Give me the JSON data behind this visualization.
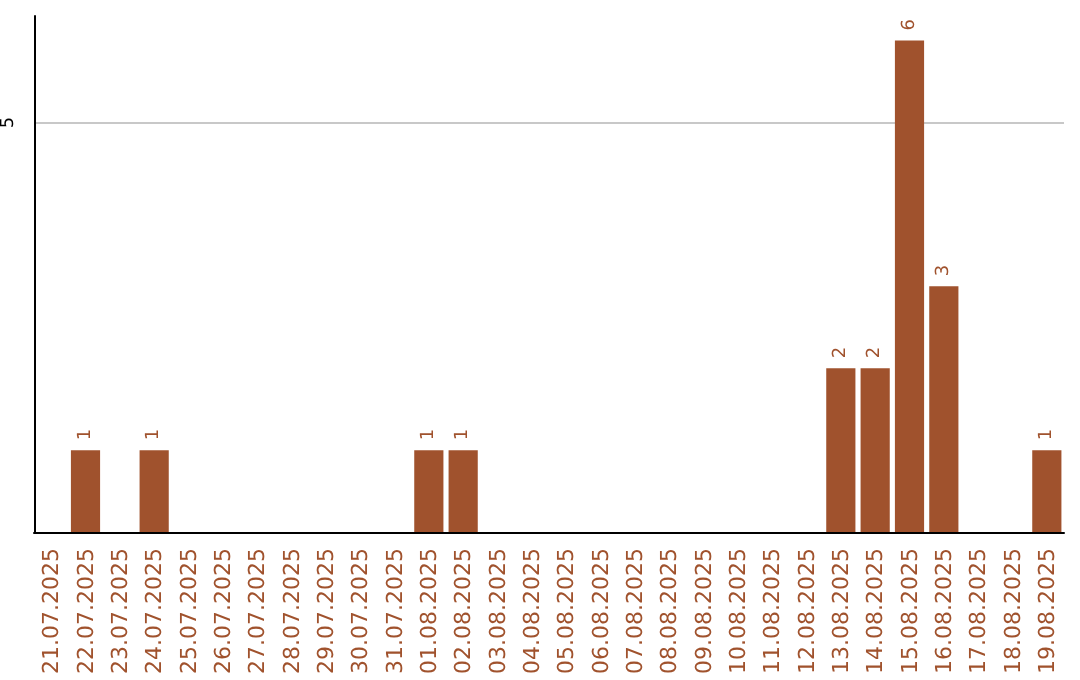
{
  "chart_data": {
    "type": "bar",
    "categories": [
      "21.07.2025",
      "22.07.2025",
      "23.07.2025",
      "24.07.2025",
      "25.07.2025",
      "26.07.2025",
      "27.07.2025",
      "28.07.2025",
      "29.07.2025",
      "30.07.2025",
      "31.07.2025",
      "01.08.2025",
      "02.08.2025",
      "03.08.2025",
      "04.08.2025",
      "05.08.2025",
      "06.08.2025",
      "07.08.2025",
      "08.08.2025",
      "09.08.2025",
      "10.08.2025",
      "11.08.2025",
      "12.08.2025",
      "13.08.2025",
      "14.08.2025",
      "15.08.2025",
      "16.08.2025",
      "17.08.2025",
      "18.08.2025",
      "19.08.2025"
    ],
    "values": [
      0,
      1,
      0,
      1,
      0,
      0,
      0,
      0,
      0,
      0,
      0,
      1,
      1,
      0,
      0,
      0,
      0,
      0,
      0,
      0,
      0,
      0,
      0,
      2,
      2,
      6,
      3,
      0,
      0,
      1
    ],
    "value_labels": [
      null,
      "1",
      null,
      "1",
      null,
      null,
      null,
      null,
      null,
      null,
      null,
      "1",
      "1",
      null,
      null,
      null,
      null,
      null,
      null,
      null,
      null,
      null,
      null,
      "2",
      "2",
      "6",
      "3",
      null,
      null,
      "1"
    ],
    "color": "#a0522d",
    "ylim": [
      0,
      6.3
    ],
    "yticks": [
      5
    ],
    "grid": "y"
  }
}
